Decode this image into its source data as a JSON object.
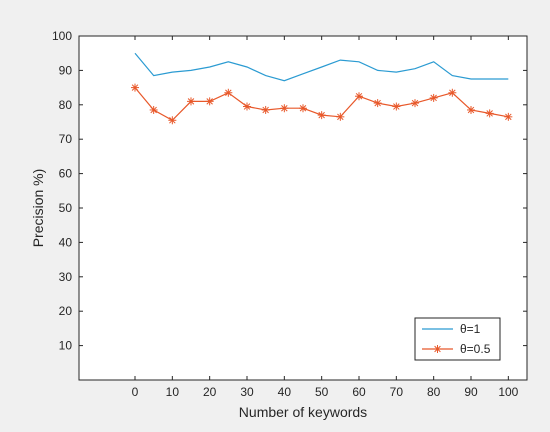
{
  "chart_data": {
    "type": "line",
    "title": "",
    "xlabel": "Number of keywords",
    "ylabel": "Precision %)",
    "x": [
      0,
      5,
      10,
      15,
      20,
      25,
      30,
      35,
      40,
      45,
      50,
      55,
      60,
      65,
      70,
      75,
      80,
      85,
      90,
      95,
      100
    ],
    "xlim": [
      -15,
      105
    ],
    "ylim": [
      0,
      100
    ],
    "xticks": [
      0,
      10,
      20,
      30,
      40,
      50,
      60,
      70,
      80,
      90,
      100
    ],
    "yticks": [
      10,
      20,
      30,
      40,
      50,
      60,
      70,
      80,
      90,
      100
    ],
    "grid": false,
    "legend_position": "bottom-right",
    "series": [
      {
        "name": "θ=1",
        "color": "#2b9bd2",
        "marker": "none",
        "values": [
          95,
          88.5,
          89.5,
          90,
          91,
          92.5,
          91,
          88.5,
          87,
          89,
          91,
          93,
          92.5,
          90,
          89.5,
          90.5,
          92.5,
          88.5,
          87.5,
          87.5,
          87.5
        ]
      },
      {
        "name": "θ=0.5",
        "color": "#e8582a",
        "marker": "asterisk",
        "values": [
          85,
          78.5,
          75.5,
          81,
          81,
          83.5,
          79.5,
          78.5,
          79,
          79,
          77,
          76.5,
          82.5,
          80.5,
          79.5,
          80.5,
          82,
          83.5,
          78.5,
          77.5,
          76.5
        ]
      }
    ]
  }
}
